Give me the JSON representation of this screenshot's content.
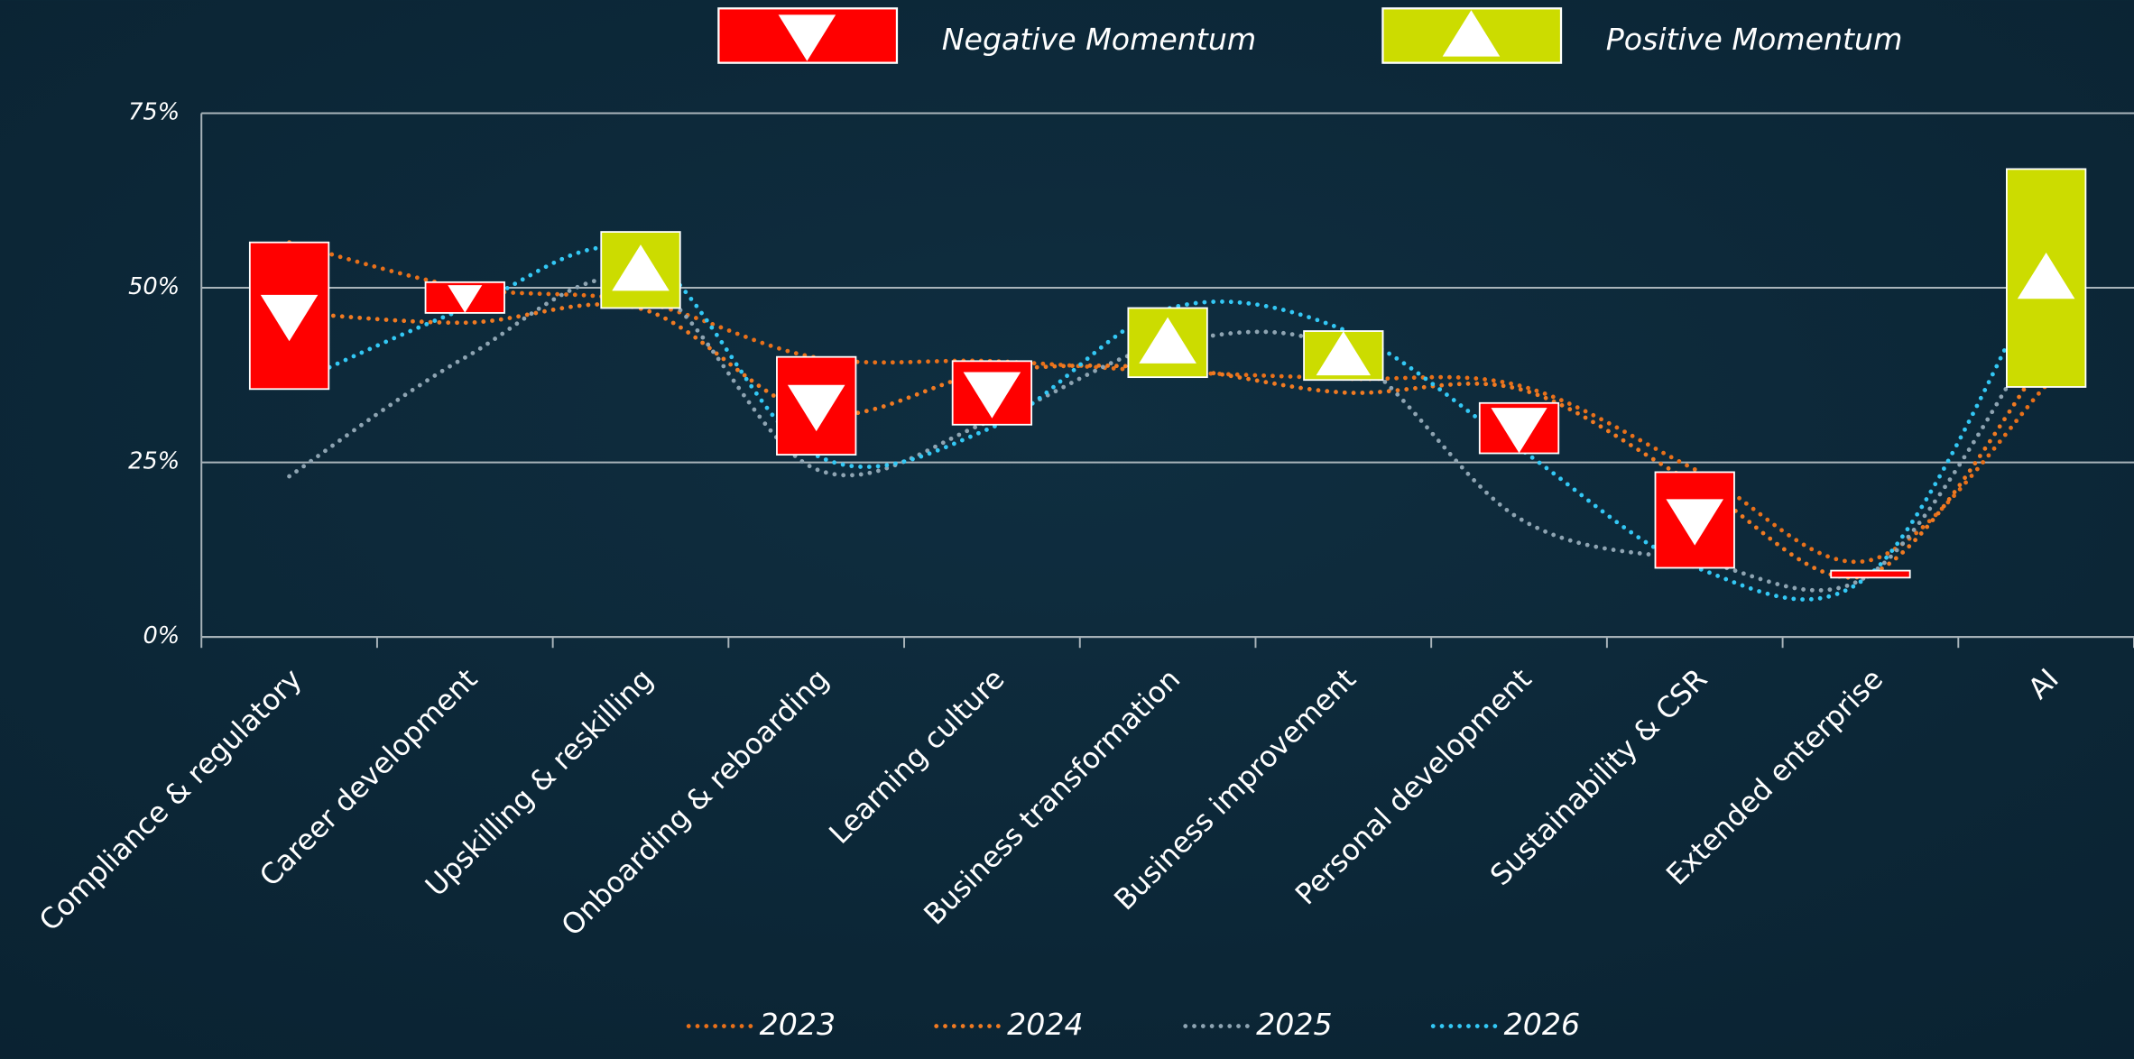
{
  "chart_data": {
    "type": "line",
    "categories": [
      "Compliance & regulatory",
      "Career development",
      "Upskilling & reskilling",
      "Onboarding & reboarding",
      "Learning culture",
      "Business transformation",
      "Business improvement",
      "Personal development",
      "Sustainability & CSR",
      "Extended enterprise",
      "AI"
    ],
    "series": [
      {
        "name": "2023",
        "color": "#e8701a",
        "values": [
          56.5,
          50,
          48,
          40,
          39.5,
          38,
          37,
          36,
          24,
          11,
          36
        ]
      },
      {
        "name": "2024",
        "color": "#f07a22",
        "values": [
          46.5,
          45,
          47,
          32,
          38,
          38.5,
          35,
          35.5,
          22,
          9,
          40
        ]
      },
      {
        "name": "2025",
        "color": "#8ea4b2",
        "values": [
          23,
          40,
          51,
          24,
          31,
          42,
          41,
          17,
          11,
          9,
          45
        ]
      },
      {
        "name": "2026",
        "color": "#33c8f5",
        "values": [
          36,
          47,
          55,
          26,
          30,
          47,
          44,
          27,
          10,
          9,
          53
        ]
      }
    ],
    "momentum": {
      "negative": {
        "name": "Negative Momentum",
        "color": "#ff0000"
      },
      "positive": {
        "name": "Positive Momentum",
        "color": "#ccdc00"
      },
      "from": [
        56.5,
        50.8,
        47.1,
        40.1,
        39.5,
        37.2,
        36.8,
        33.5,
        23.6,
        9.5,
        35.8
      ],
      "to": [
        35.5,
        46.4,
        58,
        26.1,
        30.4,
        47.1,
        43.8,
        26.3,
        9.9,
        8.5,
        67
      ]
    },
    "ylim": [
      0,
      75
    ],
    "yticks": [
      {
        "value": 0,
        "label": "0%"
      },
      {
        "value": 25,
        "label": "25%"
      },
      {
        "value": 50,
        "label": "50%"
      },
      {
        "value": 75,
        "label": "75%"
      }
    ],
    "grid": true
  }
}
